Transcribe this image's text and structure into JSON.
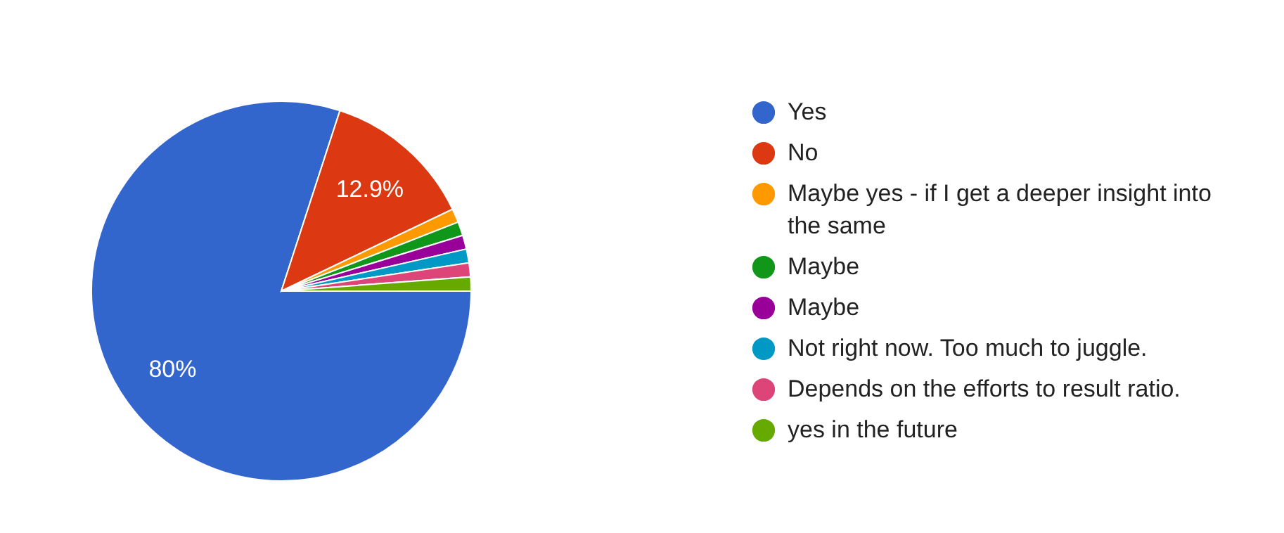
{
  "chart_data": {
    "type": "pie",
    "categories": [
      "Yes",
      "No",
      "Maybe yes - if I get a deeper insight into the same",
      "Maybe",
      "Maybe",
      "Not right now. Too much to juggle.",
      "Depends on the efforts to result ratio.",
      "yes in the future"
    ],
    "values": [
      80,
      12.9,
      1.18,
      1.18,
      1.18,
      1.18,
      1.18,
      1.2
    ],
    "colors": [
      "#3366cc",
      "#dc3912",
      "#ff9900",
      "#109618",
      "#990099",
      "#0099c6",
      "#dd4477",
      "#66aa00"
    ],
    "value_labels": [
      "80%",
      "12.9%",
      null,
      null,
      null,
      null,
      null,
      null
    ],
    "legend": "right"
  }
}
